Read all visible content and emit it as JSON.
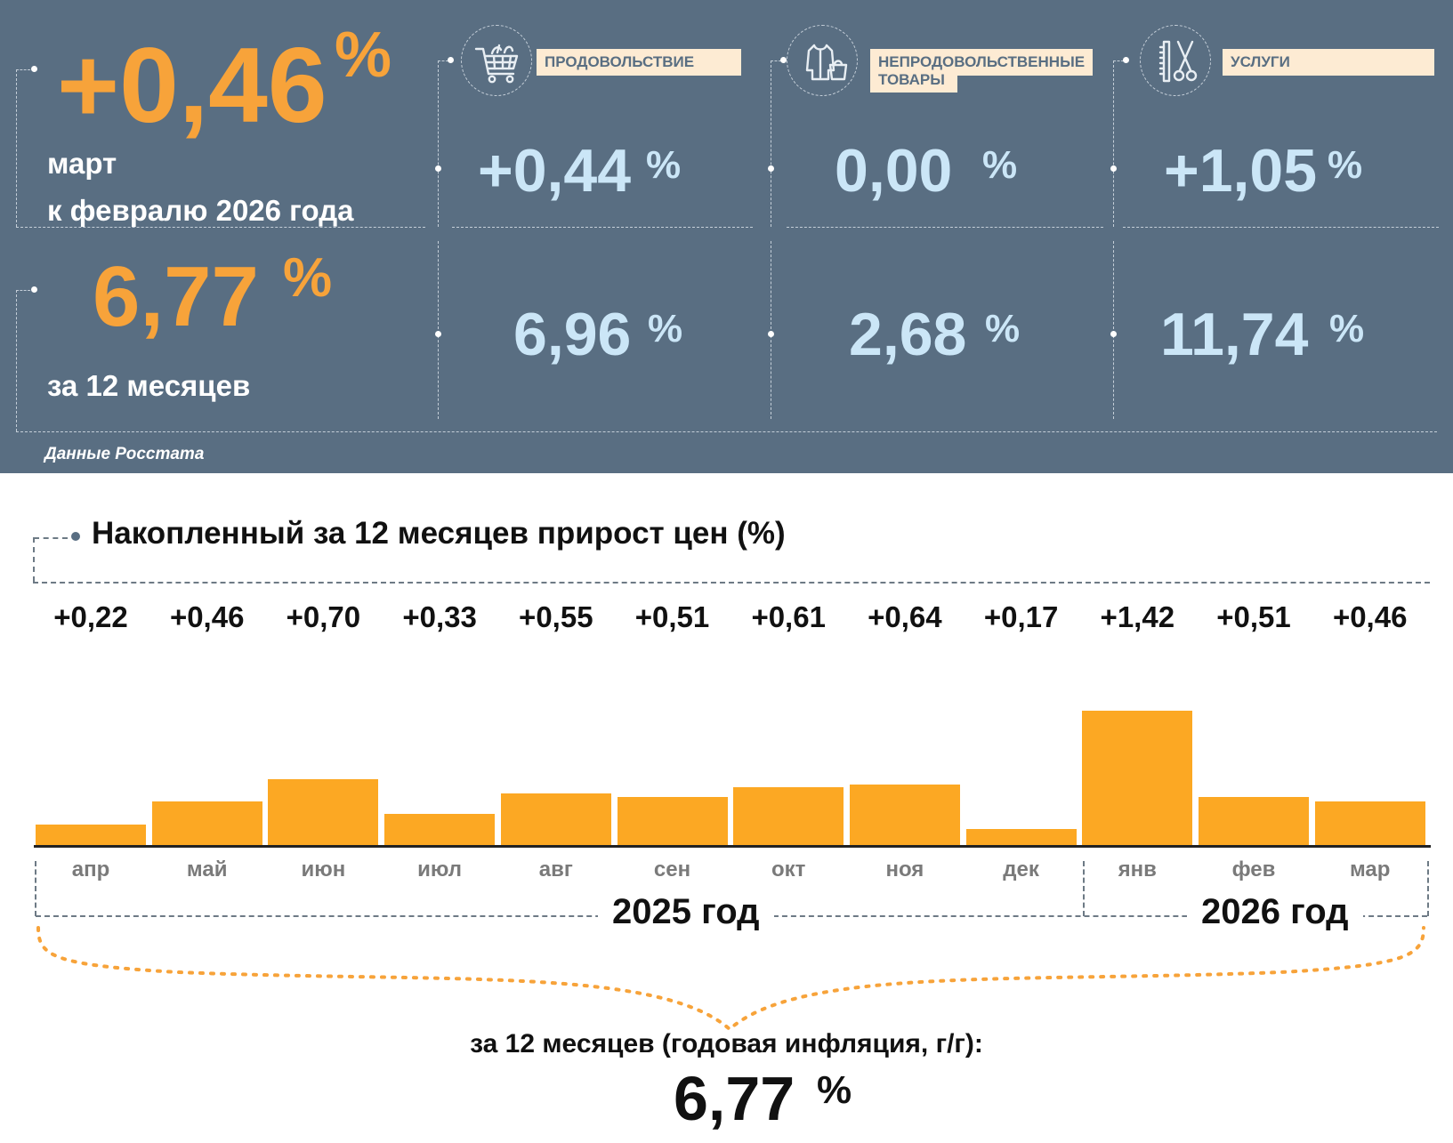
{
  "header": {
    "monthly": {
      "value": "+0,46",
      "unit": "%",
      "line1": "март",
      "line2": "к февралю 2026 года"
    },
    "annual": {
      "value": "6,77",
      "unit": "%",
      "label": "за 12 месяцев"
    },
    "categories": [
      {
        "label_line1": "ПРОДОВОЛЬСТВИЕ",
        "label_line2": "",
        "icon": "shopping-cart-icon",
        "monthly": "+0,44",
        "annual": "6,96",
        "unit": "%"
      },
      {
        "label_line1": "НЕПРОДОВОЛЬСТВЕННЫЕ",
        "label_line2": "ТОВАРЫ",
        "icon": "clothing-bag-icon",
        "monthly": "0,00",
        "annual": "2,68",
        "unit": "%"
      },
      {
        "label_line1": "УСЛУГИ",
        "label_line2": "",
        "icon": "comb-scissors-icon",
        "monthly": "+1,05",
        "annual": "11,74",
        "unit": "%"
      }
    ],
    "source": "Данные Росстата"
  },
  "chart_data": {
    "type": "bar",
    "title": "Накопленный за 12 месяцев прирост цен (%)",
    "categories": [
      "апр",
      "май",
      "июн",
      "июл",
      "авг",
      "сен",
      "окт",
      "ноя",
      "дек",
      "янв",
      "фев",
      "мар"
    ],
    "values": [
      0.22,
      0.46,
      0.7,
      0.33,
      0.55,
      0.51,
      0.61,
      0.64,
      0.17,
      1.42,
      0.51,
      0.46
    ],
    "value_labels": [
      "+0,22",
      "+0,46",
      "+0,70",
      "+0,33",
      "+0,55",
      "+0,51",
      "+0,61",
      "+0,64",
      "+0,17",
      "+1,42",
      "+0,51",
      "+0,46"
    ],
    "years": [
      {
        "label": "2025 год",
        "months": 9
      },
      {
        "label": "2026 год",
        "months": 3
      }
    ],
    "bar_color": "#fca823",
    "summary_label": "за 12 месяцев (годовая инфляция, г/г):",
    "summary_value": "6,77",
    "summary_unit": "%"
  },
  "colors": {
    "panel": "#596e82",
    "accent_orange": "#f7a33a",
    "value_blue": "#cbe6f7",
    "label_bg": "#fdebd3"
  }
}
